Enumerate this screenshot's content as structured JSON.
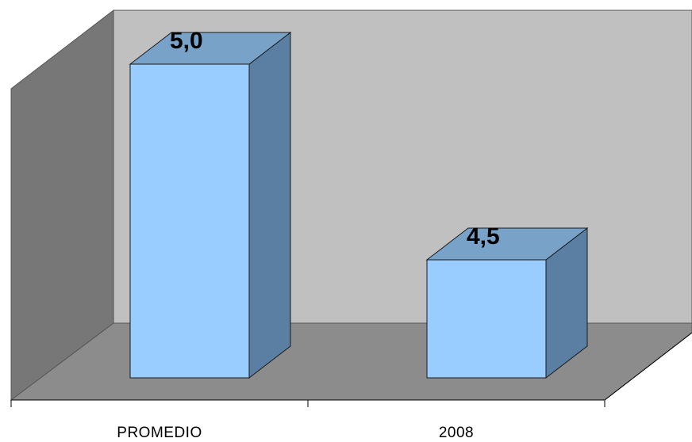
{
  "chart_data": {
    "type": "bar",
    "categories": [
      "PROMEDIO",
      "2008"
    ],
    "values": [
      5.0,
      4.5
    ],
    "value_labels": [
      "5,0",
      "4,5"
    ],
    "title": "",
    "xlabel": "",
    "ylabel": "",
    "ylim": [
      4.0,
      5.0
    ],
    "grid": false,
    "legend": "none",
    "three_d": true
  },
  "colors": {
    "bar_front": "#99ccff",
    "bar_side": "#5a7fa3",
    "bar_top": "#78a2c8",
    "back_wall": "#c0c0c0",
    "side_wall": "#7a7a7a",
    "floor": "#8c8c8c"
  }
}
